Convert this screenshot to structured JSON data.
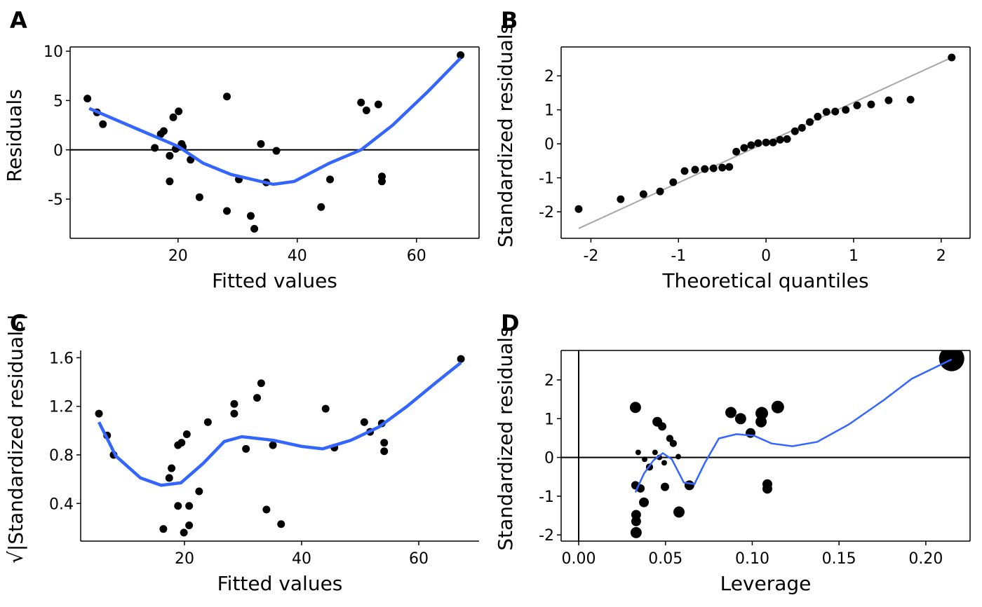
{
  "chart_data": [
    {
      "type": "scatter",
      "panel_label": "A",
      "xlabel": "Fitted values",
      "ylabel": "Residuals",
      "frame": true,
      "color": "#000000",
      "x": [
        4.8,
        6.4,
        7.4,
        16.1,
        17.1,
        17.6,
        18.6,
        18.6,
        19.2,
        19.6,
        20.1,
        20.6,
        20.8,
        22.1,
        23.6,
        28.2,
        28.2,
        30.2,
        32.2,
        32.8,
        33.9,
        34.8,
        36.5,
        44.0,
        45.5,
        50.7,
        51.6,
        53.6,
        54.2,
        54.2,
        67.4
      ],
      "y": [
        5.2,
        3.8,
        2.6,
        0.2,
        1.6,
        1.9,
        -0.6,
        -3.2,
        3.3,
        0.1,
        3.9,
        0.6,
        0.3,
        -1.0,
        -4.8,
        5.4,
        -6.2,
        -3.0,
        -6.7,
        -8.0,
        0.6,
        -3.3,
        -0.1,
        -5.8,
        -3.0,
        4.8,
        4.0,
        4.6,
        -2.7,
        -3.2,
        9.6
      ],
      "smooth": {
        "color": "#3366ff",
        "x": [
          5.1,
          13.6,
          20,
          24.2,
          28.9,
          36,
          39.5,
          45.4,
          50.7,
          56,
          61.9,
          67.4
        ],
        "y": [
          4.2,
          2.0,
          0.35,
          -1.35,
          -2.5,
          -3.5,
          -3.2,
          -1.35,
          0,
          2.5,
          5.9,
          9.3
        ]
      },
      "hline": 0,
      "xlim": [
        1.9,
        70.5
      ],
      "ylim": [
        -8.97,
        10.43
      ],
      "xticks": [
        20,
        40,
        60
      ],
      "yticks": [
        -5,
        0,
        5,
        10
      ]
    },
    {
      "type": "scatter",
      "panel_label": "B",
      "xlabel": "Theoretical quantiles",
      "ylabel": "Standardized residuals",
      "frame": true,
      "color": "#000000",
      "x": [
        -2.14,
        -1.66,
        -1.4,
        -1.21,
        -1.06,
        -0.93,
        -0.81,
        -0.7,
        -0.6,
        -0.5,
        -0.42,
        -0.34,
        -0.25,
        -0.17,
        -0.09,
        0,
        0.08,
        0.16,
        0.24,
        0.33,
        0.41,
        0.5,
        0.59,
        0.69,
        0.79,
        0.91,
        1.04,
        1.2,
        1.4,
        1.65,
        2.12
      ],
      "y": [
        -1.92,
        -1.63,
        -1.48,
        -1.4,
        -1.13,
        -0.8,
        -0.76,
        -0.74,
        -0.72,
        -0.7,
        -0.68,
        -0.23,
        -0.12,
        -0.04,
        0.02,
        0.04,
        0.04,
        0.12,
        0.14,
        0.37,
        0.47,
        0.64,
        0.8,
        0.94,
        0.95,
        1.0,
        1.13,
        1.16,
        1.28,
        1.3,
        2.54
      ],
      "ref_line": {
        "color": "#a6a6a6",
        "x": [
          -2.14,
          2.12
        ],
        "y": [
          -2.49,
          2.54
        ]
      },
      "xlim": [
        -2.34,
        2.33
      ],
      "ylim": [
        -2.78,
        2.85
      ],
      "xticks": [
        -2,
        -1,
        0,
        1,
        2
      ],
      "yticks": [
        -2,
        -1,
        0,
        1,
        2
      ]
    },
    {
      "type": "scatter",
      "panel_label": "C",
      "xlabel": "Fitted values",
      "ylabel": "√|Standardized residuals|",
      "frame": false,
      "color": "#000000",
      "x": [
        5.4,
        6.8,
        7.9,
        16.4,
        17.4,
        17.8,
        18.9,
        18.9,
        19.5,
        19.9,
        20.4,
        20.8,
        20.8,
        22.5,
        24.0,
        28.5,
        28.5,
        30.5,
        32.4,
        33.1,
        34.0,
        35.1,
        36.5,
        44.1,
        45.6,
        50.7,
        51.7,
        53.7,
        54.1,
        54.1,
        67.2
      ],
      "y": [
        1.14,
        0.96,
        0.8,
        0.19,
        0.61,
        0.69,
        0.88,
        0.38,
        0.9,
        0.16,
        0.97,
        0.38,
        0.22,
        0.5,
        1.07,
        1.22,
        1.14,
        0.85,
        1.27,
        1.39,
        0.35,
        0.88,
        0.23,
        1.18,
        0.86,
        1.07,
        0.99,
        1.06,
        0.9,
        0.83,
        1.59
      ],
      "smooth": {
        "color": "#3366ff",
        "x": [
          5.4,
          8.3,
          12.5,
          16,
          19.4,
          23.2,
          26.8,
          29.8,
          35.2,
          40,
          43.6,
          48.4,
          53.2,
          58,
          62.8,
          67.2
        ],
        "y": [
          1.07,
          0.79,
          0.61,
          0.55,
          0.57,
          0.73,
          0.91,
          0.95,
          0.92,
          0.87,
          0.85,
          0.92,
          1.03,
          1.2,
          1.39,
          1.56
        ]
      },
      "xlim": [
        2.28,
        70.3
      ],
      "ylim": [
        0.09,
        1.66
      ],
      "xticks": [
        20,
        40,
        60
      ],
      "yticks": [
        0.4,
        0.8,
        1.2,
        1.6
      ]
    },
    {
      "type": "scatter",
      "panel_label": "D",
      "xlabel": "Leverage",
      "ylabel": "Standardized residuals",
      "frame": true,
      "color": "#000000",
      "x": [
        0.0327,
        0.0327,
        0.0331,
        0.0331,
        0.0331,
        0.0343,
        0.0356,
        0.0376,
        0.038,
        0.0408,
        0.044,
        0.0453,
        0.0465,
        0.0481,
        0.0493,
        0.0497,
        0.0525,
        0.0545,
        0.0574,
        0.0578,
        0.0638,
        0.0877,
        0.0933,
        0.099,
        0.1051,
        0.1055,
        0.1087,
        0.1087,
        0.1147,
        0.2149
      ],
      "y": [
        1.29,
        -0.72,
        -1.48,
        -1.65,
        -1.94,
        0.13,
        -0.8,
        -1.16,
        -0.05,
        -0.25,
        0.13,
        0.92,
        0.0,
        0.8,
        -0.14,
        -0.76,
        0.49,
        0.36,
        0.02,
        -1.41,
        -0.72,
        1.16,
        1.0,
        0.63,
        0.92,
        1.14,
        -0.69,
        -0.81,
        1.3,
        2.55
      ],
      "sizes": [
        0.11,
        0.04,
        0.07,
        0.07,
        0.11,
        0.004,
        0.04,
        0.07,
        0.004,
        0.02,
        0.004,
        0.07,
        0.004,
        0.04,
        0.004,
        0.04,
        0.02,
        0.02,
        0.004,
        0.11,
        0.07,
        0.11,
        0.11,
        0.07,
        0.11,
        0.16,
        0.07,
        0.07,
        0.16,
        1.0
      ],
      "smooth": {
        "color": "#3366ff",
        "x": [
          0.0327,
          0.0376,
          0.0432,
          0.0485,
          0.0537,
          0.0606,
          0.0667,
          0.0727,
          0.0808,
          0.0909,
          0.101,
          0.1111,
          0.1232,
          0.1374,
          0.1556,
          0.1758,
          0.1919,
          0.2149
        ],
        "y": [
          -0.9,
          -0.42,
          -0.07,
          0.11,
          -0.05,
          -0.65,
          -0.69,
          -0.14,
          0.49,
          0.6,
          0.56,
          0.36,
          0.29,
          0.4,
          0.85,
          1.48,
          2.03,
          2.53
        ]
      },
      "hline": 0,
      "vline": 0,
      "xlim": [
        -0.0101,
        0.2255
      ],
      "ylim": [
        -2.16,
        2.76
      ],
      "xticks": [
        {
          "value": 0,
          "label": "0.00"
        },
        0.05,
        {
          "value": 0.1,
          "label": "0.10"
        },
        0.15,
        {
          "value": 0.2,
          "label": "0.20"
        }
      ],
      "yticks": [
        -2,
        -1,
        0,
        1,
        2
      ]
    }
  ]
}
